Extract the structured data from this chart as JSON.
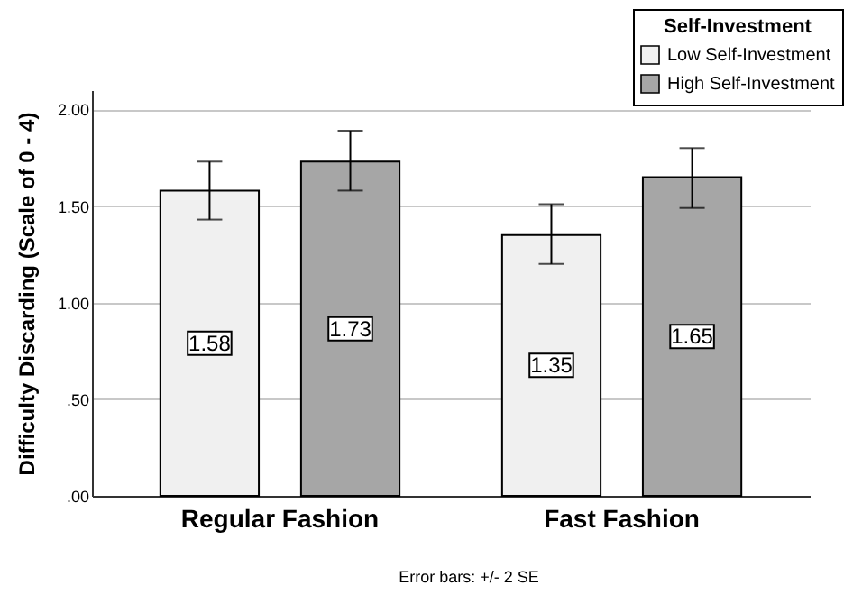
{
  "chart_data": {
    "type": "bar",
    "ylabel": "Difficulty Discarding (Scale of 0 - 4)",
    "legend_title": "Self-Investment",
    "categories": [
      "Regular Fashion",
      "Fast Fashion"
    ],
    "series": [
      {
        "name": "Low Self-Investment",
        "color": "#f0f0f0",
        "values": [
          1.58,
          1.35
        ],
        "errors": [
          [
            1.43,
            1.73
          ],
          [
            1.2,
            1.51
          ]
        ]
      },
      {
        "name": "High Self-Investment",
        "color": "#a6a6a6",
        "values": [
          1.73,
          1.65
        ],
        "errors": [
          [
            1.58,
            1.89
          ],
          [
            1.49,
            1.8
          ]
        ]
      }
    ],
    "ylim": [
      0,
      2.1
    ],
    "yticks": [
      {
        "value": 0,
        "label": ".00"
      },
      {
        "value": 0.5,
        "label": ".50"
      },
      {
        "value": 1,
        "label": "1.00"
      },
      {
        "value": 1.5,
        "label": "1.50"
      },
      {
        "value": 2,
        "label": "2.00"
      }
    ],
    "grid": "y",
    "legend": "top right",
    "data_labels": true,
    "annotations": [
      "Error bars: +/- 2 SE"
    ]
  }
}
